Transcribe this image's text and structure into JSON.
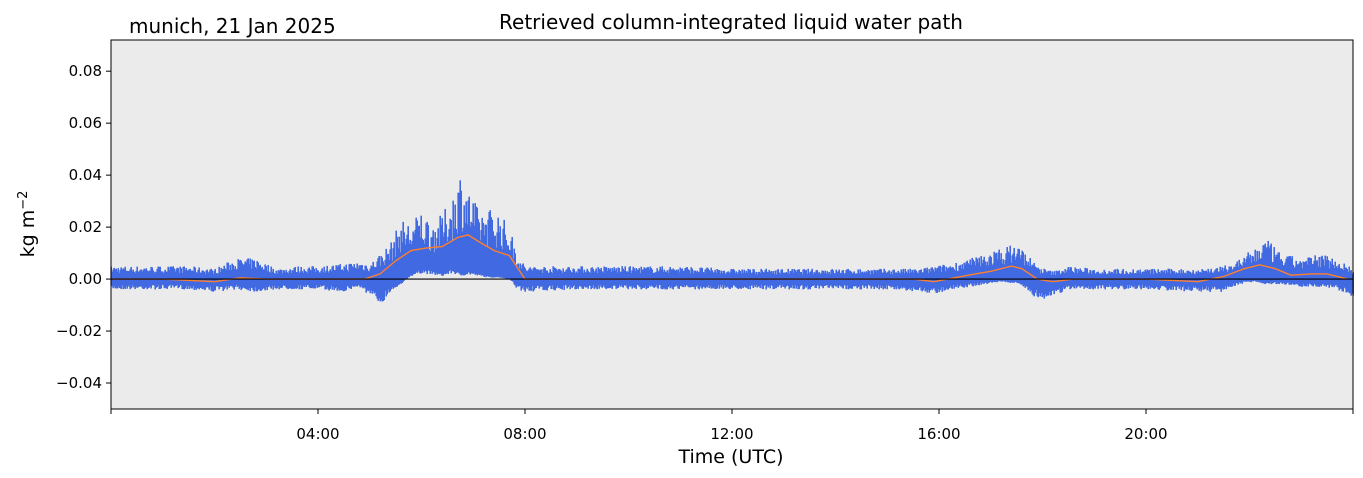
{
  "chart_data": {
    "type": "scatter",
    "title": "Retrieved column-integrated liquid water path",
    "subtitle": "munich, 21 Jan 2025",
    "xlabel": "Time (UTC)",
    "ylabel": "kg m",
    "ylabel_superscript": "−2",
    "xlim_hours": [
      0,
      24
    ],
    "ylim": [
      -0.05,
      0.092
    ],
    "x_ticks": [
      {
        "hour": 0,
        "label": ""
      },
      {
        "hour": 4,
        "label": "04:00"
      },
      {
        "hour": 8,
        "label": "08:00"
      },
      {
        "hour": 12,
        "label": "12:00"
      },
      {
        "hour": 16,
        "label": "16:00"
      },
      {
        "hour": 20,
        "label": "20:00"
      },
      {
        "hour": 24,
        "label": ""
      }
    ],
    "y_ticks": [
      {
        "value": -0.04,
        "label": "−0.04"
      },
      {
        "value": -0.02,
        "label": "−0.02"
      },
      {
        "value": 0.0,
        "label": "0.00"
      },
      {
        "value": 0.02,
        "label": "0.02"
      },
      {
        "value": 0.04,
        "label": "0.04"
      },
      {
        "value": 0.06,
        "label": "0.06"
      },
      {
        "value": 0.08,
        "label": "0.08"
      }
    ],
    "zero_line": 0,
    "background_color": "#ebebeb",
    "series": [
      {
        "kind": "scatter",
        "color": "#4169e1",
        "points": [
          [
            0.0,
            -0.004,
            0.005
          ],
          [
            0.5,
            -0.004,
            0.005
          ],
          [
            1.0,
            -0.004,
            0.005
          ],
          [
            1.5,
            -0.004,
            0.005
          ],
          [
            2.0,
            -0.005,
            0.004
          ],
          [
            2.4,
            -0.004,
            0.008
          ],
          [
            2.8,
            -0.005,
            0.008
          ],
          [
            3.2,
            -0.004,
            0.004
          ],
          [
            3.6,
            -0.004,
            0.005
          ],
          [
            4.0,
            -0.004,
            0.005
          ],
          [
            4.5,
            -0.005,
            0.006
          ],
          [
            4.8,
            -0.003,
            0.007
          ],
          [
            5.0,
            -0.007,
            0.006
          ],
          [
            5.2,
            -0.01,
            0.01
          ],
          [
            5.4,
            -0.005,
            0.014
          ],
          [
            5.6,
            -0.002,
            0.023
          ],
          [
            5.8,
            0.002,
            0.022
          ],
          [
            6.0,
            0.004,
            0.027
          ],
          [
            6.2,
            0.003,
            0.022
          ],
          [
            6.4,
            0.002,
            0.025
          ],
          [
            6.6,
            0.004,
            0.033
          ],
          [
            6.75,
            0.002,
            0.042
          ],
          [
            6.9,
            0.003,
            0.035
          ],
          [
            7.1,
            0.002,
            0.027
          ],
          [
            7.3,
            0.001,
            0.028
          ],
          [
            7.5,
            0.001,
            0.026
          ],
          [
            7.7,
            0.0,
            0.02
          ],
          [
            7.85,
            -0.004,
            0.01
          ],
          [
            8.0,
            -0.005,
            0.005
          ],
          [
            9.0,
            -0.004,
            0.005
          ],
          [
            10.0,
            -0.004,
            0.005
          ],
          [
            11.0,
            -0.004,
            0.005
          ],
          [
            12.0,
            -0.004,
            0.004
          ],
          [
            13.0,
            -0.004,
            0.004
          ],
          [
            14.0,
            -0.004,
            0.004
          ],
          [
            15.0,
            -0.004,
            0.004
          ],
          [
            15.6,
            -0.005,
            0.004
          ],
          [
            15.9,
            -0.006,
            0.005
          ],
          [
            16.2,
            -0.004,
            0.006
          ],
          [
            16.6,
            -0.003,
            0.008
          ],
          [
            16.9,
            -0.002,
            0.01
          ],
          [
            17.2,
            -0.001,
            0.012
          ],
          [
            17.5,
            -0.002,
            0.014
          ],
          [
            17.7,
            -0.004,
            0.01
          ],
          [
            17.9,
            -0.008,
            0.005
          ],
          [
            18.2,
            -0.007,
            0.003
          ],
          [
            18.5,
            -0.004,
            0.005
          ],
          [
            19.0,
            -0.004,
            0.004
          ],
          [
            20.0,
            -0.004,
            0.004
          ],
          [
            21.0,
            -0.005,
            0.004
          ],
          [
            21.5,
            -0.005,
            0.005
          ],
          [
            21.8,
            -0.002,
            0.008
          ],
          [
            22.1,
            -0.001,
            0.012
          ],
          [
            22.3,
            -0.002,
            0.016
          ],
          [
            22.6,
            -0.002,
            0.01
          ],
          [
            23.0,
            -0.003,
            0.008
          ],
          [
            23.4,
            -0.003,
            0.01
          ],
          [
            23.7,
            -0.004,
            0.008
          ],
          [
            24.0,
            -0.008,
            0.004
          ]
        ]
      },
      {
        "kind": "line",
        "color": "#ff7f2a",
        "x": [
          0,
          1,
          2,
          2.5,
          3,
          3.5,
          4,
          4.5,
          4.9,
          5.2,
          5.5,
          5.8,
          6.1,
          6.4,
          6.7,
          6.9,
          7.1,
          7.4,
          7.7,
          8.0,
          8.5,
          10,
          12,
          14,
          15.5,
          15.9,
          16.3,
          16.7,
          17.0,
          17.4,
          17.6,
          17.9,
          18.2,
          18.6,
          19,
          20,
          21,
          21.5,
          21.9,
          22.2,
          22.5,
          22.8,
          23.2,
          23.5,
          23.9
        ],
        "y": [
          0,
          0,
          -0.001,
          0.0005,
          0,
          0,
          0,
          0,
          0,
          0.002,
          0.007,
          0.011,
          0.012,
          0.0125,
          0.016,
          0.017,
          0.0145,
          0.011,
          0.009,
          0,
          0,
          0,
          0,
          0,
          0,
          -0.001,
          0.0005,
          0.002,
          0.003,
          0.005,
          0.004,
          0,
          -0.001,
          0,
          0,
          0,
          -0.001,
          0.001,
          0.004,
          0.0055,
          0.004,
          0.0015,
          0.002,
          0.002,
          0
        ]
      }
    ]
  }
}
